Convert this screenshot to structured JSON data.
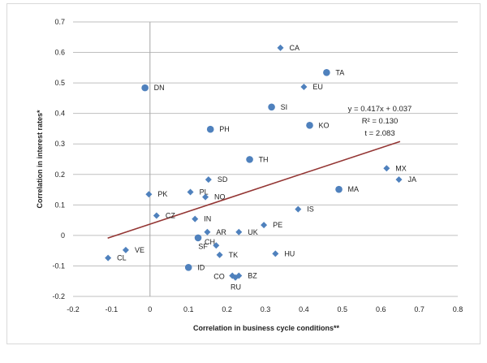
{
  "chart_data": {
    "type": "scatter",
    "title": "",
    "xlabel": "Correlation in business cycle conditions**",
    "ylabel": "Correlation in interest rates*",
    "xlim": [
      -0.2,
      0.8
    ],
    "ylim": [
      -0.2,
      0.7
    ],
    "xticks": [
      "-0.2",
      "-0.1",
      "0",
      "0.1",
      "0.2",
      "0.3",
      "0.4",
      "0.5",
      "0.6",
      "0.7",
      "0.8"
    ],
    "yticks": [
      "-0.2",
      "-0.1",
      "0",
      "0.1",
      "0.2",
      "0.3",
      "0.4",
      "0.5",
      "0.6",
      "0.7"
    ],
    "grid": "horizontal",
    "colors": {
      "points": "#4f81bd",
      "trendline": "#943634"
    },
    "points": [
      {
        "label": "CA",
        "x": 0.339,
        "y": 0.615,
        "marker": "diamond"
      },
      {
        "label": "TA",
        "x": 0.459,
        "y": 0.534,
        "marker": "circle"
      },
      {
        "label": "EU",
        "x": 0.4,
        "y": 0.487,
        "marker": "diamond"
      },
      {
        "label": "DN",
        "x": -0.013,
        "y": 0.484,
        "marker": "circle"
      },
      {
        "label": "SI",
        "x": 0.316,
        "y": 0.421,
        "marker": "circle"
      },
      {
        "label": "KO",
        "x": 0.415,
        "y": 0.361,
        "marker": "circle"
      },
      {
        "label": "PH",
        "x": 0.157,
        "y": 0.348,
        "marker": "circle"
      },
      {
        "label": "TH",
        "x": 0.259,
        "y": 0.249,
        "marker": "circle"
      },
      {
        "label": "MX",
        "x": 0.615,
        "y": 0.22,
        "marker": "diamond"
      },
      {
        "label": "SD",
        "x": 0.152,
        "y": 0.183,
        "marker": "diamond"
      },
      {
        "label": "JA",
        "x": 0.647,
        "y": 0.183,
        "marker": "diamond"
      },
      {
        "label": "MA",
        "x": 0.491,
        "y": 0.151,
        "marker": "circle"
      },
      {
        "label": "PL",
        "x": 0.105,
        "y": 0.142,
        "marker": "diamond"
      },
      {
        "label": "PK",
        "x": -0.003,
        "y": 0.135,
        "marker": "diamond"
      },
      {
        "label": "NO",
        "x": 0.144,
        "y": 0.126,
        "marker": "diamond"
      },
      {
        "label": "IS",
        "x": 0.385,
        "y": 0.086,
        "marker": "diamond"
      },
      {
        "label": "CZ",
        "x": 0.017,
        "y": 0.065,
        "marker": "diamond"
      },
      {
        "label": "IN",
        "x": 0.117,
        "y": 0.054,
        "marker": "diamond"
      },
      {
        "label": "PE",
        "x": 0.296,
        "y": 0.034,
        "marker": "diamond"
      },
      {
        "label": "AR",
        "x": 0.149,
        "y": 0.011,
        "marker": "diamond"
      },
      {
        "label": "UK",
        "x": 0.231,
        "y": 0.011,
        "marker": "diamond"
      },
      {
        "label": "CH",
        "x": 0.125,
        "y": -0.008,
        "marker": "circle"
      },
      {
        "label": "SF",
        "x": 0.172,
        "y": -0.033,
        "marker": "diamond"
      },
      {
        "label": "VE",
        "x": -0.063,
        "y": -0.048,
        "marker": "diamond"
      },
      {
        "label": "HU",
        "x": 0.326,
        "y": -0.06,
        "marker": "diamond"
      },
      {
        "label": "TK",
        "x": 0.181,
        "y": -0.064,
        "marker": "diamond"
      },
      {
        "label": "CL",
        "x": -0.109,
        "y": -0.074,
        "marker": "diamond"
      },
      {
        "label": "ID",
        "x": 0.1,
        "y": -0.105,
        "marker": "circle"
      },
      {
        "label": "CO",
        "x": 0.214,
        "y": -0.132,
        "marker": "diamond"
      },
      {
        "label": "BZ",
        "x": 0.231,
        "y": -0.132,
        "marker": "diamond"
      },
      {
        "label": "RU",
        "x": 0.222,
        "y": -0.138,
        "marker": "diamond"
      }
    ],
    "trendline": {
      "slope": 0.417,
      "intercept": 0.037,
      "x_range": [
        -0.11,
        0.65
      ]
    },
    "annotations": [
      "y = 0.417x + 0.037",
      "R² = 0.130",
      "t = 2.083"
    ]
  }
}
